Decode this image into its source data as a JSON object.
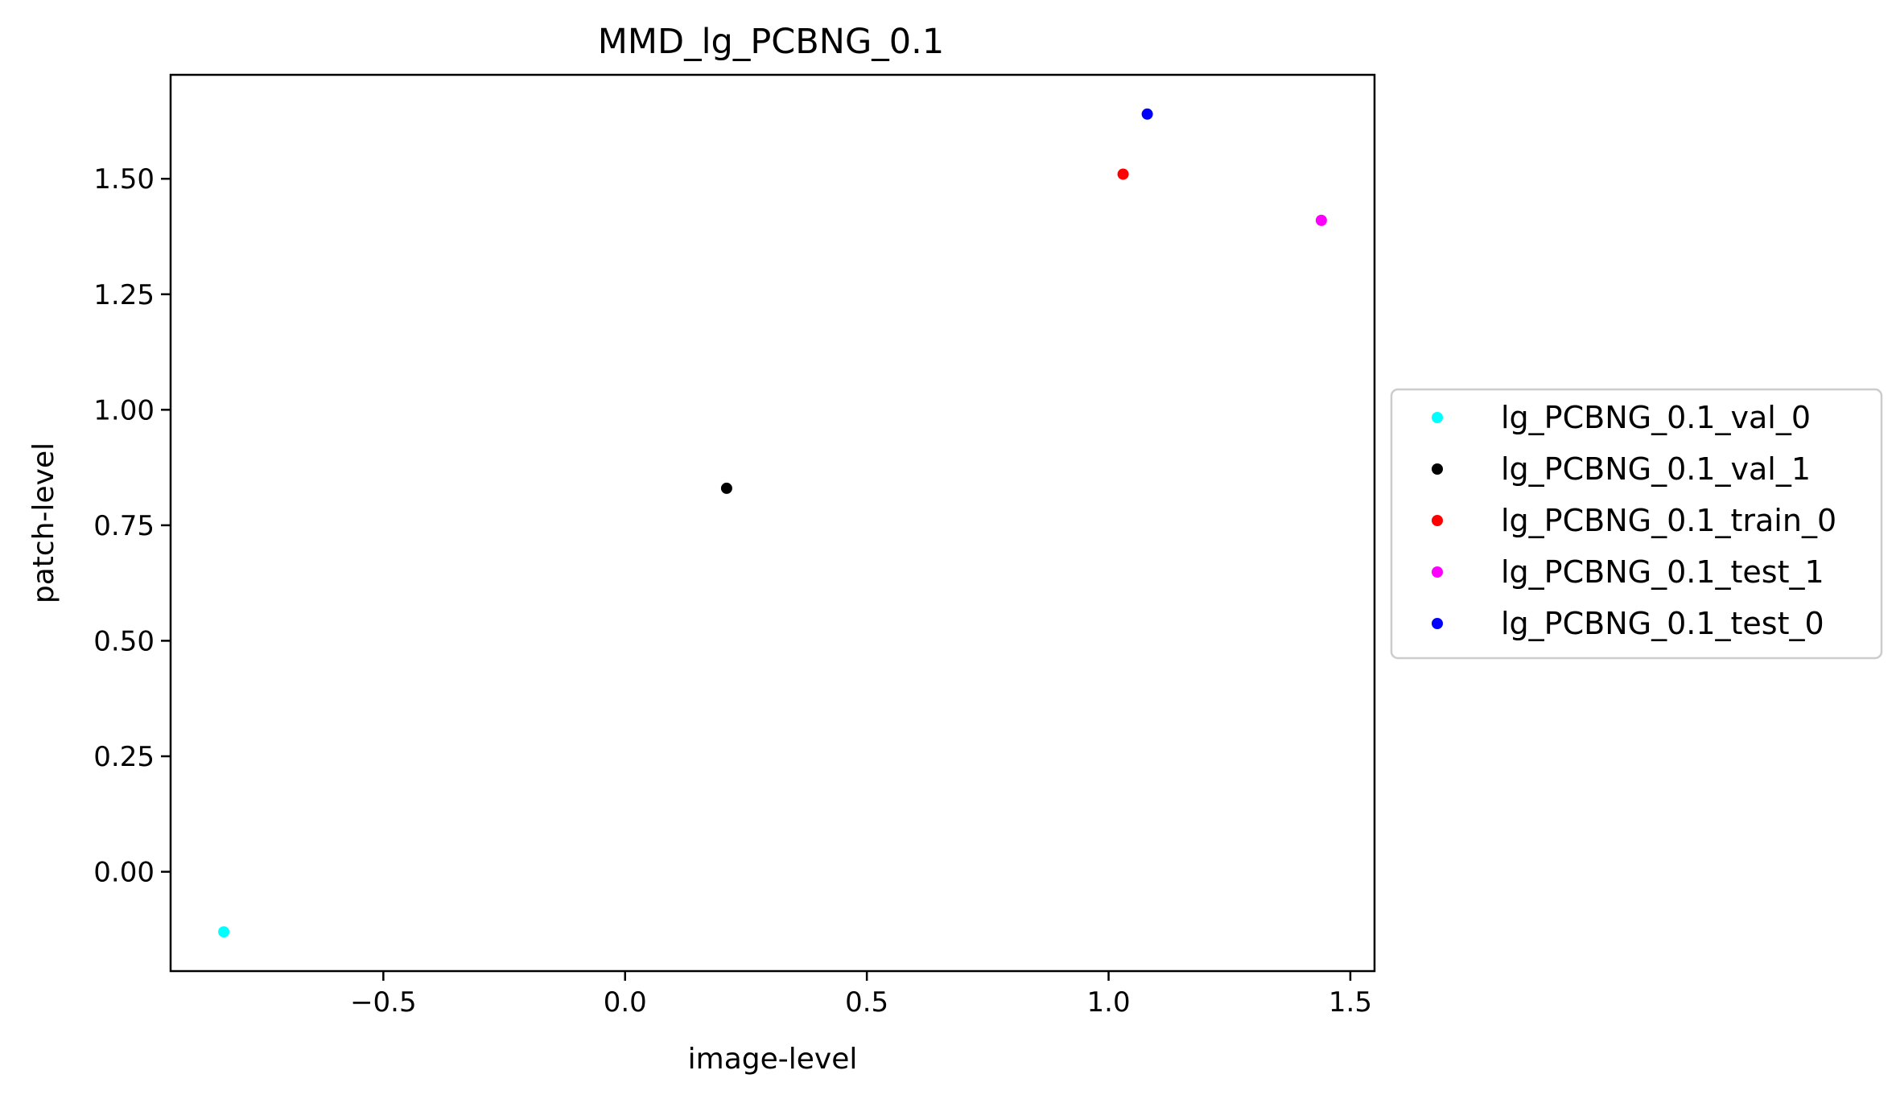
{
  "chart_data": {
    "type": "scatter",
    "title": "MMD_lg_PCBNG_0.1",
    "xlabel": "image-level",
    "ylabel": "patch-level",
    "xlim": [
      -0.94,
      1.55
    ],
    "ylim": [
      -0.215,
      1.725
    ],
    "x_ticks": [
      -0.5,
      0.0,
      0.5,
      1.0,
      1.5
    ],
    "x_tick_labels": [
      "−0.5",
      "0.0",
      "0.5",
      "1.0",
      "1.5"
    ],
    "y_ticks": [
      0.0,
      0.25,
      0.5,
      0.75,
      1.0,
      1.25,
      1.5
    ],
    "y_tick_labels": [
      "0.00",
      "0.25",
      "0.50",
      "0.75",
      "1.00",
      "1.25",
      "1.50"
    ],
    "grid": false,
    "legend_position": "outside-right",
    "series": [
      {
        "name": "lg_PCBNG_0.1_val_0",
        "color": "#00ffff",
        "x": [
          -0.83
        ],
        "y": [
          -0.13
        ]
      },
      {
        "name": "lg_PCBNG_0.1_val_1",
        "color": "#000000",
        "x": [
          0.21
        ],
        "y": [
          0.83
        ]
      },
      {
        "name": "lg_PCBNG_0.1_train_0",
        "color": "#ff0000",
        "x": [
          1.03
        ],
        "y": [
          1.51
        ]
      },
      {
        "name": "lg_PCBNG_0.1_test_1",
        "color": "#ff00ff",
        "x": [
          1.44
        ],
        "y": [
          1.41
        ]
      },
      {
        "name": "lg_PCBNG_0.1_test_0",
        "color": "#0000ff",
        "x": [
          1.08
        ],
        "y": [
          1.64
        ]
      }
    ]
  }
}
